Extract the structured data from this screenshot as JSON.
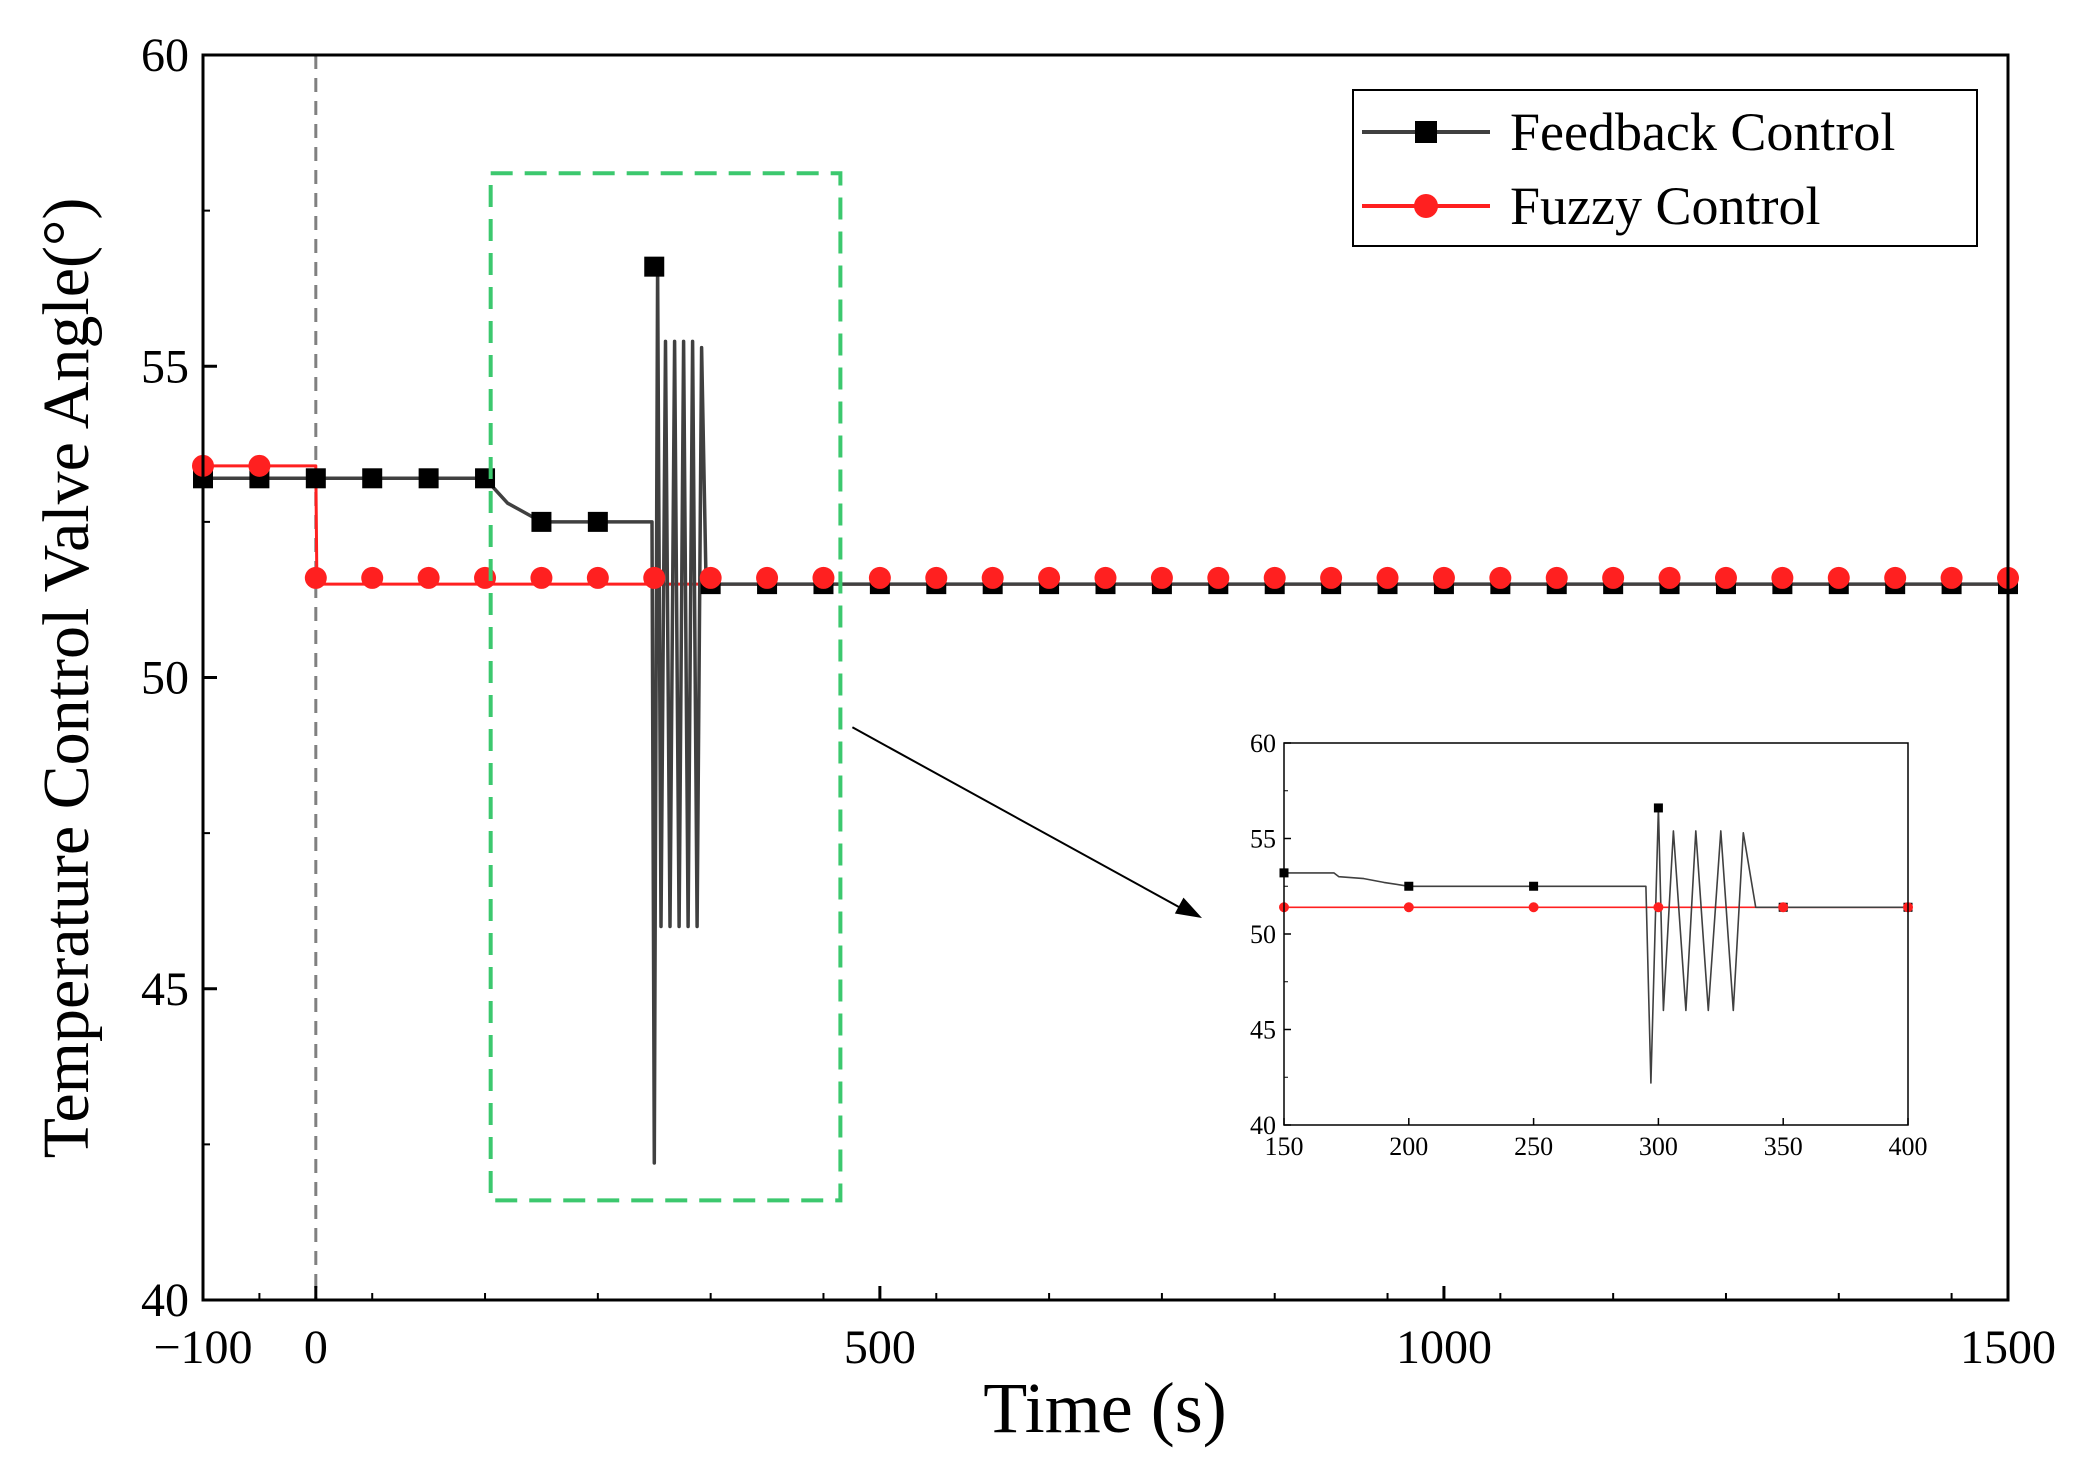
{
  "chart_data": {
    "type": "line",
    "title": "",
    "xlabel": "Time (s)",
    "ylabel": "Temperature Control Valve Angle(°)",
    "xlim": [
      -100,
      1500
    ],
    "ylim": [
      40,
      60
    ],
    "xticks": [
      -100,
      0,
      500,
      1000,
      1500
    ],
    "xtick_labels": [
      "−100",
      "0",
      "500",
      "1000",
      "1500"
    ],
    "yticks": [
      40,
      45,
      50,
      55,
      60
    ],
    "ytick_labels": [
      "40",
      "45",
      "50",
      "55",
      "60"
    ],
    "event_line_x": 0,
    "legend": {
      "position": "top-right",
      "entries": [
        "Feedback Control",
        "Fuzzy Control"
      ]
    },
    "colors": {
      "feedback": "#404040",
      "feedback_marker": "#000000",
      "fuzzy": "#ff2020",
      "zoom_box": "#3cc86e",
      "event_line": "#808080",
      "arrow": "#000000"
    },
    "series": [
      {
        "name": "Feedback Control",
        "step_points": [
          [
            -100,
            53.2
          ],
          [
            150,
            53.2
          ],
          [
            160,
            53.0
          ],
          [
            170,
            52.8
          ],
          [
            180,
            52.7
          ],
          [
            190,
            52.6
          ],
          [
            200,
            52.5
          ],
          [
            298,
            52.5
          ],
          [
            300,
            42.2
          ],
          [
            303,
            56.6
          ],
          [
            306,
            46.0
          ],
          [
            310,
            55.4
          ],
          [
            314,
            46.0
          ],
          [
            318,
            55.4
          ],
          [
            322,
            46.0
          ],
          [
            326,
            55.4
          ],
          [
            330,
            46.0
          ],
          [
            334,
            55.4
          ],
          [
            338,
            46.0
          ],
          [
            342,
            55.3
          ],
          [
            346,
            51.5
          ],
          [
            1500,
            51.5
          ]
        ],
        "marker_x": [
          -100,
          -50,
          0,
          50,
          100,
          150,
          200,
          250,
          300,
          350,
          400,
          450,
          500,
          550,
          600,
          650,
          700,
          750,
          800,
          850,
          900,
          950,
          1000,
          1050,
          1100,
          1150,
          1200,
          1250,
          1300,
          1350,
          1400,
          1450,
          1500
        ],
        "marker_y": [
          53.2,
          53.2,
          53.2,
          53.2,
          53.2,
          53.2,
          52.5,
          52.5,
          56.6,
          51.5,
          51.5,
          51.5,
          51.5,
          51.5,
          51.5,
          51.5,
          51.5,
          51.5,
          51.5,
          51.5,
          51.5,
          51.5,
          51.5,
          51.5,
          51.5,
          51.5,
          51.5,
          51.5,
          51.5,
          51.5,
          51.5,
          51.5,
          51.5
        ]
      },
      {
        "name": "Fuzzy Control",
        "step_points": [
          [
            -100,
            53.4
          ],
          [
            0,
            53.4
          ],
          [
            1,
            51.5
          ],
          [
            1500,
            51.5
          ]
        ],
        "marker_x": [
          -100,
          -50,
          0,
          50,
          100,
          150,
          200,
          250,
          300,
          350,
          400,
          450,
          500,
          550,
          600,
          650,
          700,
          750,
          800,
          850,
          900,
          950,
          1000,
          1050,
          1100,
          1150,
          1200,
          1250,
          1300,
          1350,
          1400,
          1450,
          1500
        ],
        "marker_y": [
          53.4,
          53.4,
          51.6,
          51.6,
          51.6,
          51.6,
          51.6,
          51.6,
          51.6,
          51.6,
          51.6,
          51.6,
          51.6,
          51.6,
          51.6,
          51.6,
          51.6,
          51.6,
          51.6,
          51.6,
          51.6,
          51.6,
          51.6,
          51.6,
          51.6,
          51.6,
          51.6,
          51.6,
          51.6,
          51.6,
          51.6,
          51.6,
          51.6
        ]
      }
    ],
    "zoom_region": {
      "x": [
        155,
        465
      ],
      "y": [
        41.6,
        58.1
      ]
    },
    "inset": {
      "type": "line",
      "xlim": [
        150,
        400
      ],
      "ylim": [
        40,
        60
      ],
      "xticks": [
        150,
        200,
        250,
        300,
        350,
        400
      ],
      "xtick_labels": [
        "150",
        "200",
        "250",
        "300",
        "350",
        "400"
      ],
      "yticks": [
        40,
        45,
        50,
        55,
        60
      ],
      "ytick_labels": [
        "40",
        "45",
        "50",
        "55",
        "60"
      ],
      "series": [
        {
          "name": "Feedback Control",
          "step_points": [
            [
              150,
              53.2
            ],
            [
              170,
              53.2
            ],
            [
              172,
              53.0
            ],
            [
              182,
              52.9
            ],
            [
              190,
              52.7
            ],
            [
              200,
              52.5
            ],
            [
              295,
              52.5
            ],
            [
              297,
              42.2
            ],
            [
              300,
              56.6
            ],
            [
              302,
              46.0
            ],
            [
              306,
              55.4
            ],
            [
              311,
              46.0
            ],
            [
              315,
              55.4
            ],
            [
              320,
              46.0
            ],
            [
              325,
              55.4
            ],
            [
              330,
              46.0
            ],
            [
              334,
              55.3
            ],
            [
              339,
              51.4
            ],
            [
              400,
              51.4
            ]
          ],
          "marker_x": [
            150,
            200,
            250,
            300,
            350,
            400
          ],
          "marker_y": [
            53.2,
            52.5,
            52.5,
            56.6,
            51.4,
            51.4
          ]
        },
        {
          "name": "Fuzzy Control",
          "step_points": [
            [
              150,
              51.4
            ],
            [
              400,
              51.4
            ]
          ],
          "marker_x": [
            150,
            200,
            250,
            300,
            350,
            400
          ],
          "marker_y": [
            51.4,
            51.4,
            51.4,
            51.4,
            51.4,
            51.4
          ]
        }
      ]
    }
  }
}
